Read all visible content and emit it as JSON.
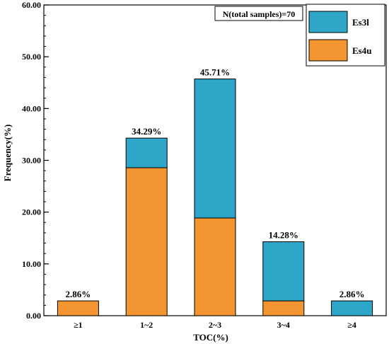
{
  "chart_data": {
    "type": "bar",
    "stacked": true,
    "categories": [
      "≥1",
      "1~2",
      "2~3",
      "3~4",
      "≥4"
    ],
    "series": [
      {
        "name": "Es4u",
        "color": "#F39530",
        "values": [
          2.86,
          28.57,
          18.86,
          2.86,
          0
        ]
      },
      {
        "name": "Es3l",
        "color": "#2DA6C8",
        "values": [
          0,
          5.72,
          26.85,
          11.42,
          2.86
        ]
      }
    ],
    "totals_labels": [
      "2.86%",
      "34.29%",
      "45.71%",
      "14.28%",
      "2.86%"
    ],
    "xlabel": "TOC(%)",
    "ylabel": "Frequency(%)",
    "ylim": [
      0,
      60
    ],
    "y_major_step": 10,
    "y_minor_step": 2,
    "yticks": [
      "0.00",
      "10.00",
      "20.00",
      "30.00",
      "40.00",
      "50.00",
      "60.00"
    ],
    "annotation": "N(total samples)=70",
    "legend_position": "top-right",
    "legend_order": [
      "Es3l",
      "Es4u"
    ],
    "grid": false
  }
}
